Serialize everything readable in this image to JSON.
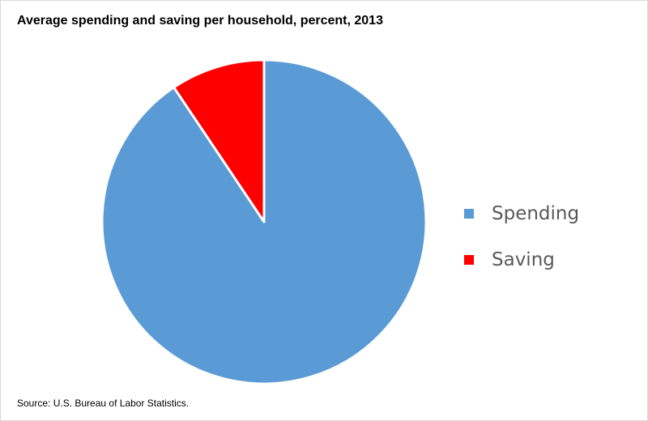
{
  "chart_data": {
    "type": "pie",
    "title": "Average spending and saving per household, percent, 2013",
    "categories": [
      "Spending",
      "Saving"
    ],
    "values": [
      90.6,
      9.4
    ],
    "colors": [
      "#5b9bd5",
      "#ff0000"
    ],
    "start_angle_deg": 0,
    "direction": "clockwise",
    "slice_border_color": "#ffffff",
    "legend_position": "right",
    "data_labels": false
  },
  "source": "Source: U.S. Bureau of Labor Statistics."
}
